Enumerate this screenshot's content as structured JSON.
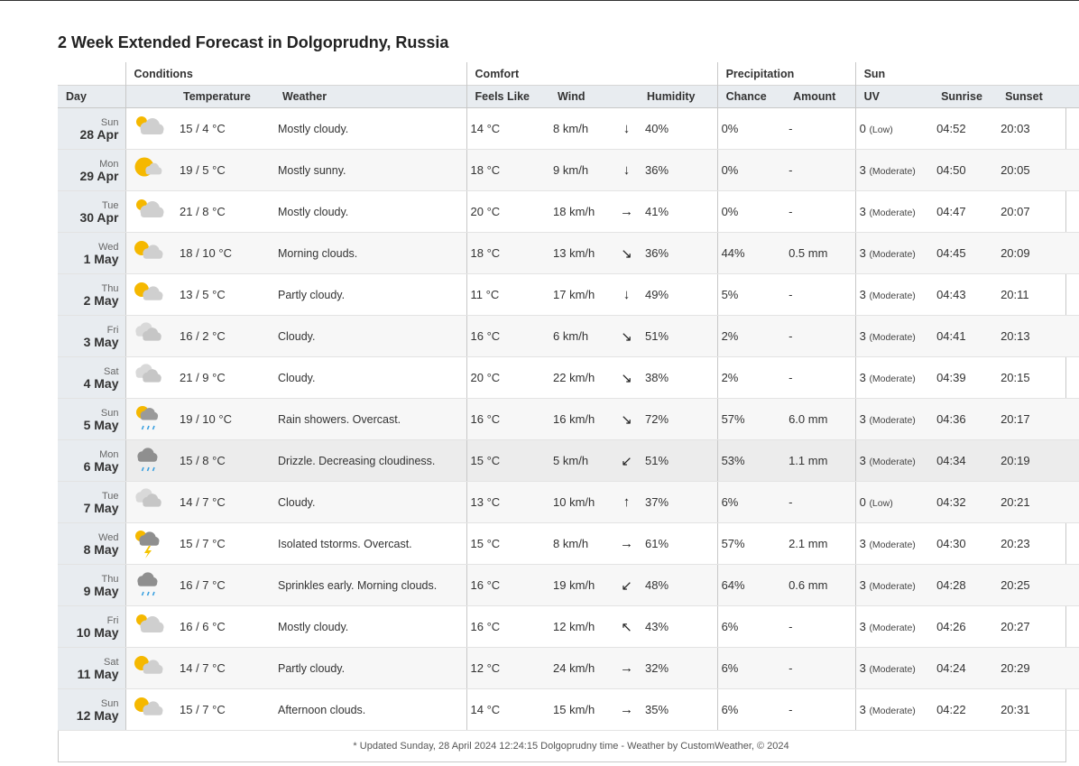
{
  "page": {
    "title": "2 Week Extended Forecast in Dolgoprudny, Russia",
    "groups": {
      "conditions": "Conditions",
      "comfort": "Comfort",
      "precipitation": "Precipitation",
      "sun": "Sun"
    },
    "columns": {
      "day": "Day",
      "temperature": "Temperature",
      "weather": "Weather",
      "feels_like": "Feels Like",
      "wind": "Wind",
      "humidity": "Humidity",
      "chance": "Chance",
      "amount": "Amount",
      "uv": "UV",
      "sunrise": "Sunrise",
      "sunset": "Sunset"
    },
    "footer": "* Updated Sunday, 28 April 2024 12:24:15 Dolgoprudny time - Weather by CustomWeather, © 2024"
  },
  "rows": [
    {
      "dow": "Sun",
      "date": "28 Apr",
      "icon": "mostly-cloudy-icon",
      "temp": "15 / 4 °C",
      "weather": "Mostly cloudy.",
      "feels": "14 °C",
      "wind": "8 km/h",
      "wind_dir": "↓",
      "humidity": "40%",
      "chance": "0%",
      "amount": "-",
      "uv": "0",
      "uv_label": "(Low)",
      "sunrise": "04:52",
      "sunset": "20:03"
    },
    {
      "dow": "Mon",
      "date": "29 Apr",
      "icon": "mostly-sunny-icon",
      "temp": "19 / 5 °C",
      "weather": "Mostly sunny.",
      "feels": "18 °C",
      "wind": "9 km/h",
      "wind_dir": "↓",
      "humidity": "36%",
      "chance": "0%",
      "amount": "-",
      "uv": "3",
      "uv_label": "(Moderate)",
      "sunrise": "04:50",
      "sunset": "20:05"
    },
    {
      "dow": "Tue",
      "date": "30 Apr",
      "icon": "mostly-cloudy-icon",
      "temp": "21 / 8 °C",
      "weather": "Mostly cloudy.",
      "feels": "20 °C",
      "wind": "18 km/h",
      "wind_dir": "→",
      "humidity": "41%",
      "chance": "0%",
      "amount": "-",
      "uv": "3",
      "uv_label": "(Moderate)",
      "sunrise": "04:47",
      "sunset": "20:07"
    },
    {
      "dow": "Wed",
      "date": "1 May",
      "icon": "partly-cloudy-icon",
      "temp": "18 / 10 °C",
      "weather": "Morning clouds.",
      "feels": "18 °C",
      "wind": "13 km/h",
      "wind_dir": "↘",
      "humidity": "36%",
      "chance": "44%",
      "amount": "0.5 mm",
      "uv": "3",
      "uv_label": "(Moderate)",
      "sunrise": "04:45",
      "sunset": "20:09"
    },
    {
      "dow": "Thu",
      "date": "2 May",
      "icon": "partly-cloudy-icon",
      "temp": "13 / 5 °C",
      "weather": "Partly cloudy.",
      "feels": "11 °C",
      "wind": "17 km/h",
      "wind_dir": "↓",
      "humidity": "49%",
      "chance": "5%",
      "amount": "-",
      "uv": "3",
      "uv_label": "(Moderate)",
      "sunrise": "04:43",
      "sunset": "20:11"
    },
    {
      "dow": "Fri",
      "date": "3 May",
      "icon": "cloudy-icon",
      "temp": "16 / 2 °C",
      "weather": "Cloudy.",
      "feels": "16 °C",
      "wind": "6 km/h",
      "wind_dir": "↘",
      "humidity": "51%",
      "chance": "2%",
      "amount": "-",
      "uv": "3",
      "uv_label": "(Moderate)",
      "sunrise": "04:41",
      "sunset": "20:13"
    },
    {
      "dow": "Sat",
      "date": "4 May",
      "icon": "cloudy-icon",
      "temp": "21 / 9 °C",
      "weather": "Cloudy.",
      "feels": "20 °C",
      "wind": "22 km/h",
      "wind_dir": "↘",
      "humidity": "38%",
      "chance": "2%",
      "amount": "-",
      "uv": "3",
      "uv_label": "(Moderate)",
      "sunrise": "04:39",
      "sunset": "20:15"
    },
    {
      "dow": "Sun",
      "date": "5 May",
      "icon": "rain-showers-icon",
      "temp": "19 / 10 °C",
      "weather": "Rain showers. Overcast.",
      "feels": "16 °C",
      "wind": "16 km/h",
      "wind_dir": "↘",
      "humidity": "72%",
      "chance": "57%",
      "amount": "6.0 mm",
      "uv": "3",
      "uv_label": "(Moderate)",
      "sunrise": "04:36",
      "sunset": "20:17"
    },
    {
      "dow": "Mon",
      "date": "6 May",
      "icon": "drizzle-icon",
      "temp": "15 / 8 °C",
      "weather": "Drizzle. Decreasing cloudiness.",
      "feels": "15 °C",
      "wind": "5 km/h",
      "wind_dir": "↙",
      "humidity": "51%",
      "chance": "53%",
      "amount": "1.1 mm",
      "uv": "3",
      "uv_label": "(Moderate)",
      "sunrise": "04:34",
      "sunset": "20:19"
    },
    {
      "dow": "Tue",
      "date": "7 May",
      "icon": "cloudy-icon",
      "temp": "14 / 7 °C",
      "weather": "Cloudy.",
      "feels": "13 °C",
      "wind": "10 km/h",
      "wind_dir": "↑",
      "humidity": "37%",
      "chance": "6%",
      "amount": "-",
      "uv": "0",
      "uv_label": "(Low)",
      "sunrise": "04:32",
      "sunset": "20:21"
    },
    {
      "dow": "Wed",
      "date": "8 May",
      "icon": "thunderstorm-icon",
      "temp": "15 / 7 °C",
      "weather": "Isolated tstorms. Overcast.",
      "feels": "15 °C",
      "wind": "8 km/h",
      "wind_dir": "→",
      "humidity": "61%",
      "chance": "57%",
      "amount": "2.1 mm",
      "uv": "3",
      "uv_label": "(Moderate)",
      "sunrise": "04:30",
      "sunset": "20:23"
    },
    {
      "dow": "Thu",
      "date": "9 May",
      "icon": "drizzle-icon",
      "temp": "16 / 7 °C",
      "weather": "Sprinkles early. Morning clouds.",
      "feels": "16 °C",
      "wind": "19 km/h",
      "wind_dir": "↙",
      "humidity": "48%",
      "chance": "64%",
      "amount": "0.6 mm",
      "uv": "3",
      "uv_label": "(Moderate)",
      "sunrise": "04:28",
      "sunset": "20:25"
    },
    {
      "dow": "Fri",
      "date": "10 May",
      "icon": "mostly-cloudy-icon",
      "temp": "16 / 6 °C",
      "weather": "Mostly cloudy.",
      "feels": "16 °C",
      "wind": "12 km/h",
      "wind_dir": "↖",
      "humidity": "43%",
      "chance": "6%",
      "amount": "-",
      "uv": "3",
      "uv_label": "(Moderate)",
      "sunrise": "04:26",
      "sunset": "20:27"
    },
    {
      "dow": "Sat",
      "date": "11 May",
      "icon": "partly-cloudy-icon",
      "temp": "14 / 7 °C",
      "weather": "Partly cloudy.",
      "feels": "12 °C",
      "wind": "24 km/h",
      "wind_dir": "→",
      "humidity": "32%",
      "chance": "6%",
      "amount": "-",
      "uv": "3",
      "uv_label": "(Moderate)",
      "sunrise": "04:24",
      "sunset": "20:29"
    },
    {
      "dow": "Sun",
      "date": "12 May",
      "icon": "partly-cloudy-icon",
      "temp": "15 / 7 °C",
      "weather": "Afternoon clouds.",
      "feels": "14 °C",
      "wind": "15 km/h",
      "wind_dir": "→",
      "humidity": "35%",
      "chance": "6%",
      "amount": "-",
      "uv": "3",
      "uv_label": "(Moderate)",
      "sunrise": "04:22",
      "sunset": "20:31"
    }
  ]
}
